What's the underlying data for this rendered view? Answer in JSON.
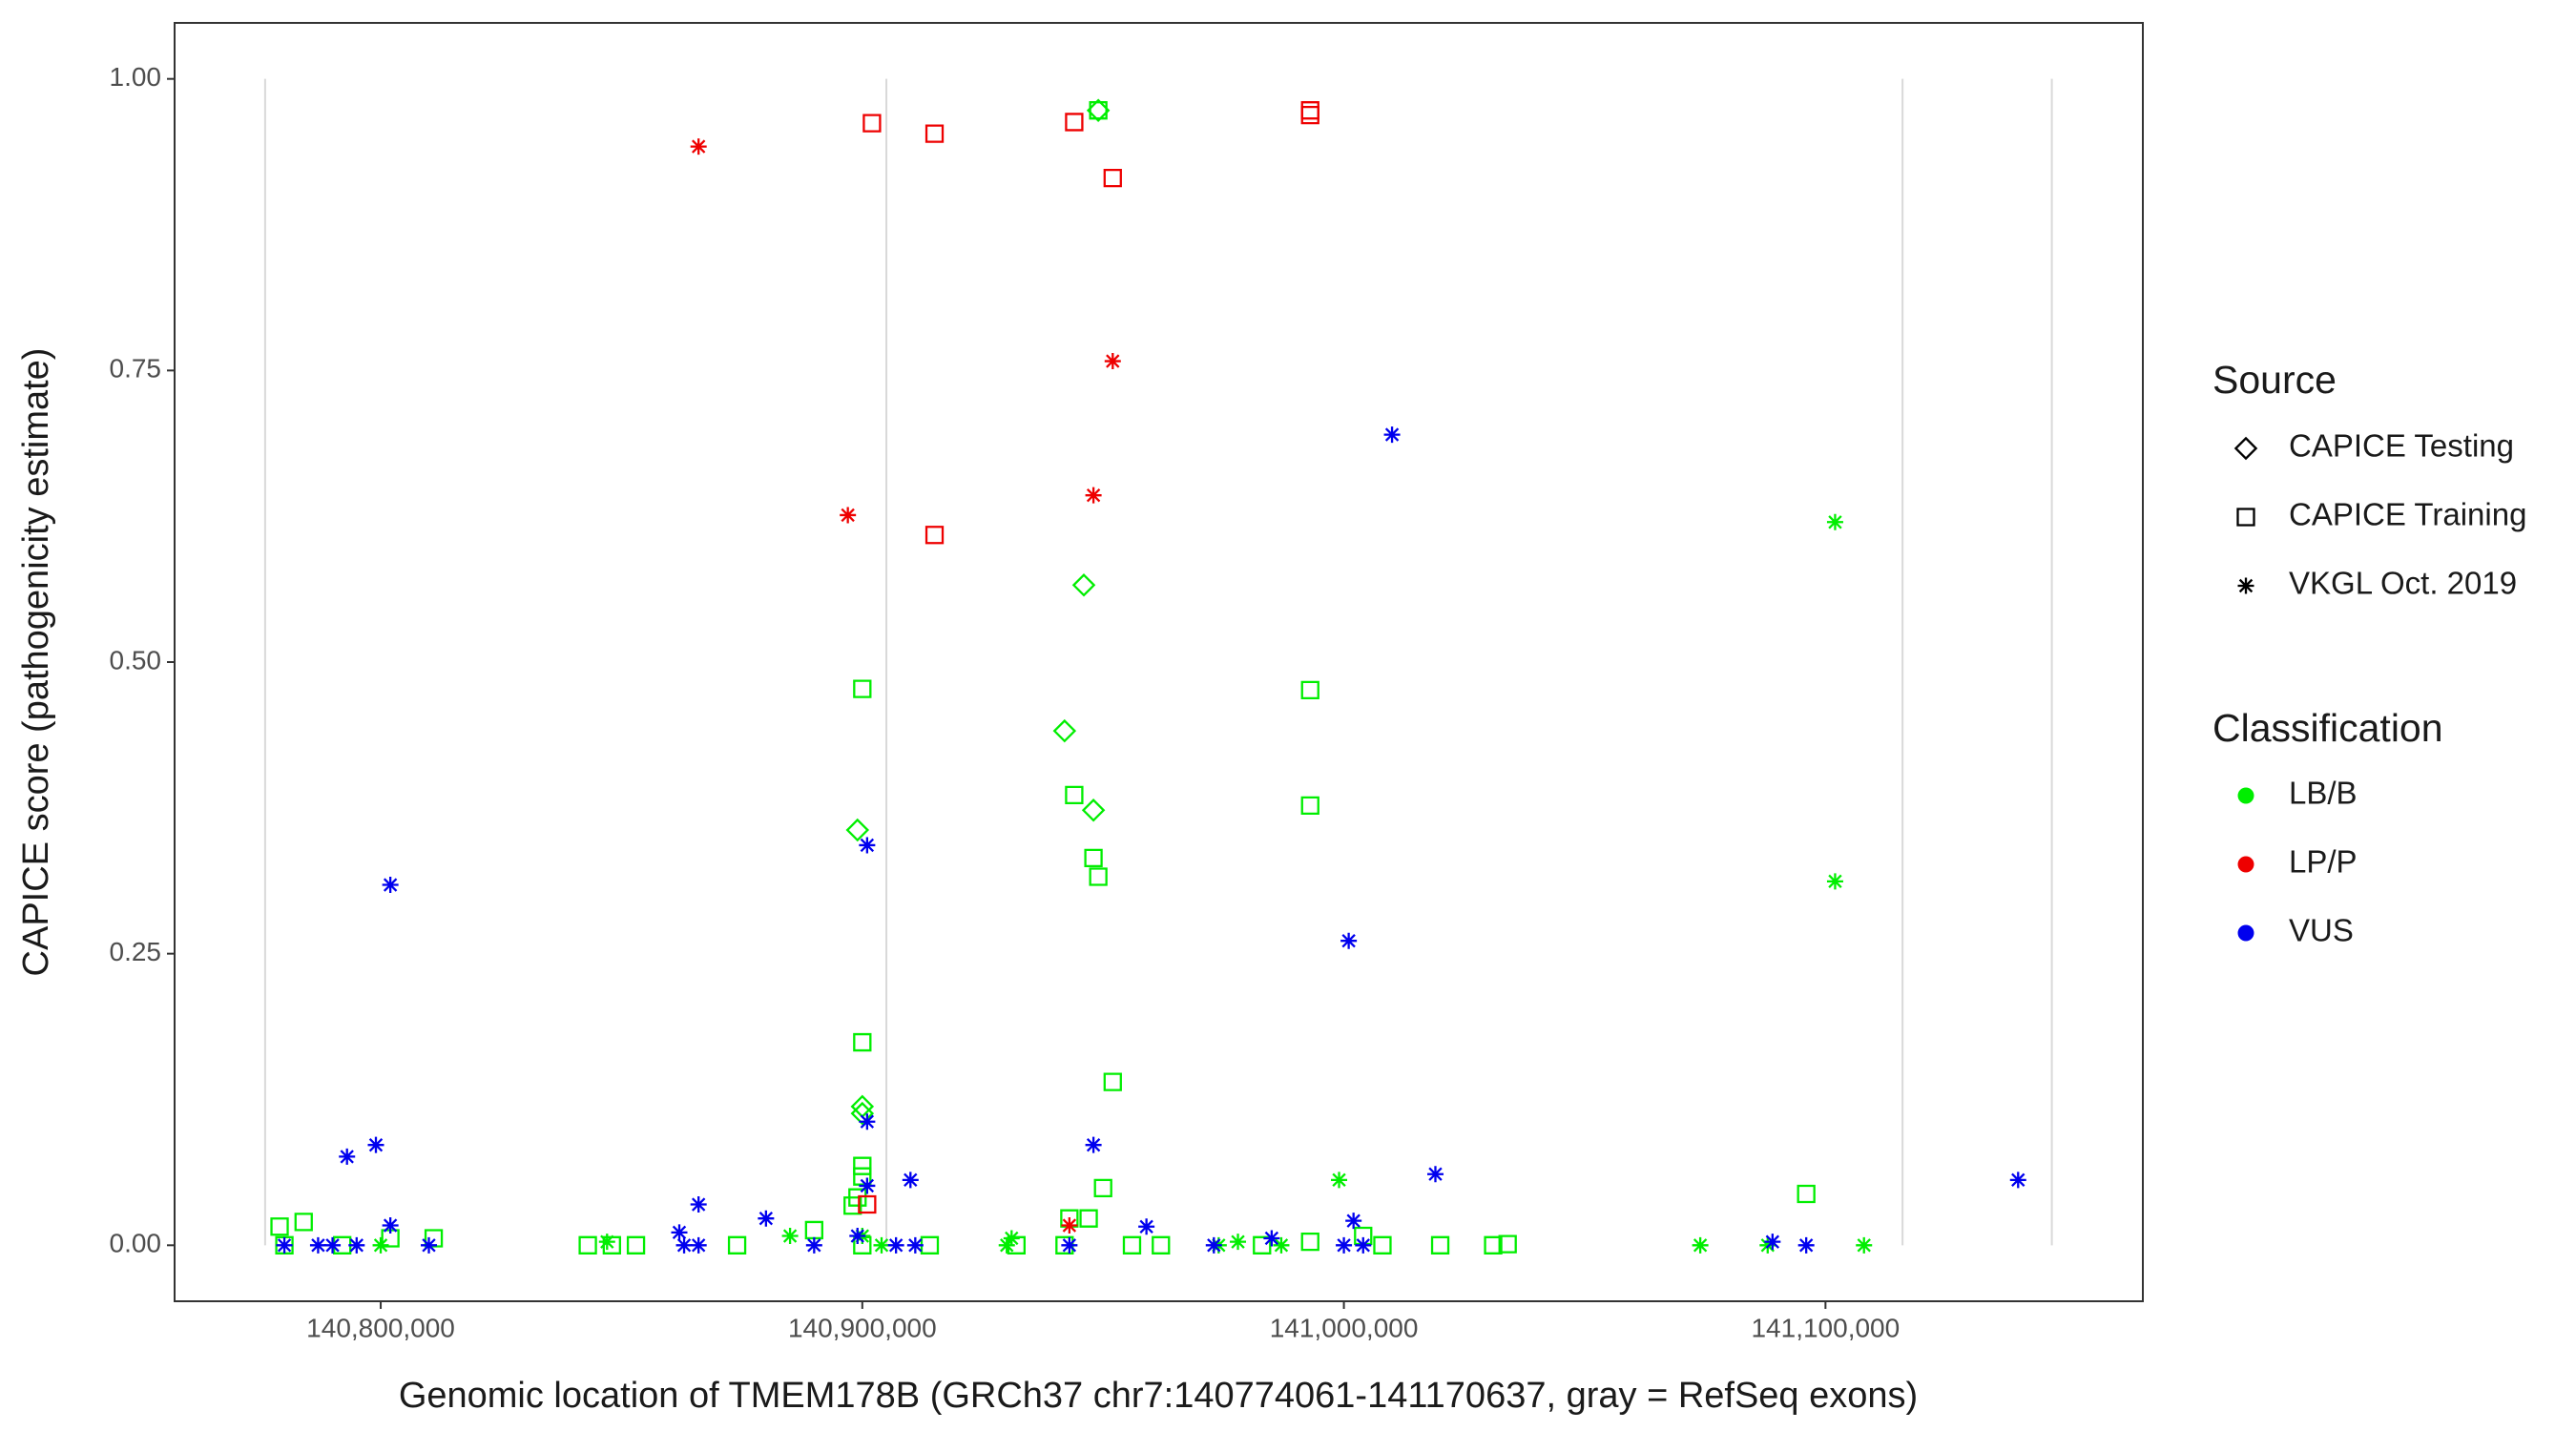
{
  "chart_data": {
    "type": "scatter",
    "x_label": "Genomic location of TMEM178B (GRCh37 chr7:140774061-141170637, gray = RefSeq exons)",
    "y_label": "CAPICE score (pathogenicity estimate)",
    "xlim": [
      140757200,
      141165900
    ],
    "ylim": [
      -0.048,
      1.048
    ],
    "xticks": [
      {
        "value": 140800000,
        "label": "140,800,000"
      },
      {
        "value": 140900000,
        "label": "140,900,000"
      },
      {
        "value": 141000000,
        "label": "141,000,000"
      },
      {
        "value": 141100000,
        "label": "141,100,000"
      }
    ],
    "yticks": [
      {
        "value": 0,
        "label": "0.00"
      },
      {
        "value": 0.25,
        "label": "0.25"
      },
      {
        "value": 0.5,
        "label": "0.50"
      },
      {
        "value": 0.75,
        "label": "0.75"
      },
      {
        "value": 1,
        "label": "1.00"
      }
    ],
    "exons": [
      140776000,
      140905000,
      141116000,
      141147000
    ],
    "exon_color": "#d9d9d9",
    "legend": {
      "source": {
        "title": "Source",
        "entries": [
          {
            "name": "CAPICE Testing",
            "shape": "diamond"
          },
          {
            "name": "CAPICE Training",
            "shape": "square"
          },
          {
            "name": "VKGL Oct. 2019",
            "shape": "asterisk"
          }
        ]
      },
      "classification": {
        "title": "Classification",
        "entries": [
          {
            "name": "LB/B",
            "color": "#00ee00"
          },
          {
            "name": "LP/P",
            "color": "#ee0000"
          },
          {
            "name": "VUS",
            "color": "#0000ee"
          }
        ]
      }
    },
    "series": [
      {
        "source": "CAPICE Testing",
        "classification": "LB/B",
        "x": [
          140949000,
          140946000,
          140942000,
          140899000,
          140948000,
          140900000,
          140900000
        ],
        "values": [
          0.973,
          0.566,
          0.441,
          0.356,
          0.373,
          0.119,
          0.113
        ]
      },
      {
        "source": "CAPICE Training",
        "classification": "LB/B",
        "x": [
          140900000,
          140900000,
          140900000,
          140900000,
          140900000,
          140993000,
          140993000,
          140993000,
          140944000,
          140948000,
          140949000,
          140949000,
          140952000,
          140950000,
          141096000,
          140898000,
          140899000,
          140779000,
          140784000,
          140943000,
          140947000,
          140843000,
          140848000,
          140853000,
          140874000,
          140890000,
          140914000,
          140932000,
          140942000,
          140956000,
          140962000,
          140983000,
          141004000,
          141008000,
          141020000,
          141031000,
          141034000,
          140802000,
          140811000,
          140780000,
          140792000
        ],
        "values": [
          0.477,
          0.174,
          0.068,
          0.059,
          0,
          0.476,
          0.377,
          0.003,
          0.386,
          0.332,
          0.316,
          0.973,
          0.14,
          0.049,
          0.044,
          0.034,
          0.041,
          0.016,
          0.02,
          0.023,
          0.023,
          0,
          0,
          0,
          0,
          0.013,
          0,
          0,
          0,
          0,
          0,
          0,
          0.008,
          0,
          0,
          0,
          0.001,
          0.006,
          0.006,
          0,
          0
        ]
      },
      {
        "source": "CAPICE Training",
        "classification": "LP/P",
        "x": [
          140902000,
          140915000,
          140944000,
          140952000,
          140993000,
          140993000,
          140915000,
          140901000
        ],
        "values": [
          0.962,
          0.953,
          0.963,
          0.915,
          0.973,
          0.969,
          0.609,
          0.035
        ]
      },
      {
        "source": "VKGL Oct. 2019",
        "classification": "LB/B",
        "x": [
          141102000,
          141102000,
          140999000,
          141074000,
          141108000,
          141088000,
          140847000,
          140885000,
          140931000,
          140930000,
          140974000,
          140978000,
          140987000,
          140800000,
          140900000,
          140904000
        ],
        "values": [
          0.62,
          0.312,
          0.056,
          0,
          0,
          0,
          0.003,
          0.008,
          0.006,
          0,
          0,
          0.003,
          0,
          0,
          0.008,
          0
        ]
      },
      {
        "source": "VKGL Oct. 2019",
        "classification": "LP/P",
        "x": [
          140866000,
          140897000,
          140952000,
          140948000,
          140943000
        ],
        "values": [
          0.942,
          0.626,
          0.758,
          0.643,
          0.017
        ]
      },
      {
        "source": "VKGL Oct. 2019",
        "classification": "VUS",
        "x": [
          140802000,
          140802000,
          141010000,
          141001000,
          140901000,
          140901000,
          140901000,
          140793000,
          140799000,
          140948000,
          141019000,
          140910000,
          141140000,
          140866000,
          140880000,
          140959000,
          141002000,
          140862000,
          140863000,
          140780000,
          140787000,
          140790000,
          140795000,
          140810000,
          140866000,
          140890000,
          140899000,
          140907000,
          140911000,
          140943000,
          140973000,
          140985000,
          141000000,
          141004000,
          141089000,
          141096000
        ],
        "values": [
          0.309,
          0.017,
          0.695,
          0.261,
          0.343,
          0.106,
          0.051,
          0.076,
          0.086,
          0.086,
          0.061,
          0.056,
          0.056,
          0.035,
          0.023,
          0.016,
          0.021,
          0.011,
          0,
          0,
          0,
          0,
          0,
          0,
          0,
          0,
          0.008,
          0,
          0,
          0,
          0,
          0.006,
          0,
          0,
          0.003,
          0
        ]
      }
    ]
  }
}
